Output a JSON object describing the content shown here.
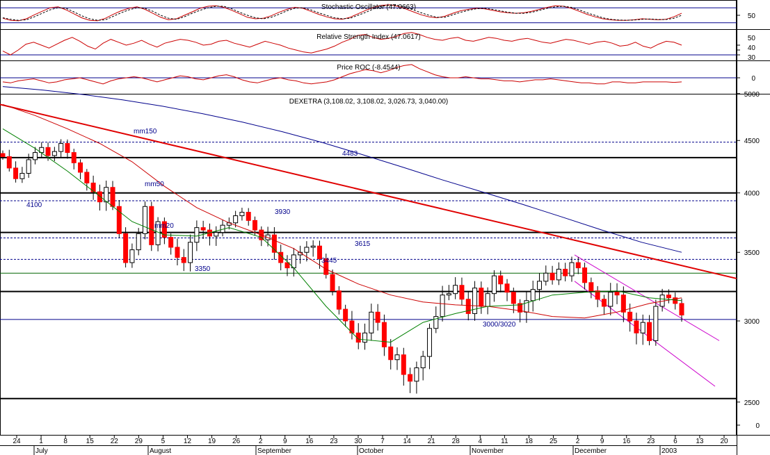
{
  "colors": {
    "background": "#ffffff",
    "frame": "#000000",
    "up_candle": "#ffffff",
    "down_candle": "#ff0000",
    "indicator_line": "#cc0000",
    "indicator_signal": "#000000",
    "indicator_ref": "#00008b",
    "mm150": "#00008b",
    "mm50": "#cc0000",
    "mm20": "#008000",
    "trendline": "#e00000",
    "channel": "#cc00cc",
    "level_dashed": "#00008b",
    "level_solid": "#000000",
    "level_thin": "#006400"
  },
  "chart_data": [
    {
      "type": "line",
      "panel": "stochastic",
      "title": "Stochastic Oscillator (47.0663)",
      "yticks": [
        "50"
      ],
      "ylim": [
        0,
        100
      ],
      "ref_levels": [
        80,
        20
      ],
      "series": [
        {
          "values": [
            38,
            30,
            28,
            36,
            52,
            66,
            80,
            84,
            72,
            56,
            40,
            30,
            28,
            38,
            54,
            68,
            78,
            84,
            74,
            58,
            42,
            32,
            36,
            50,
            64,
            78,
            86,
            88,
            82,
            70,
            56,
            42,
            36,
            38,
            48,
            62,
            74,
            82,
            78,
            66,
            54,
            44,
            36,
            34,
            42,
            56,
            70,
            82,
            90,
            92,
            86,
            76,
            64,
            52,
            44,
            40,
            46,
            58,
            68,
            74,
            78,
            76,
            70,
            64,
            60,
            58,
            60,
            66,
            74,
            82,
            88,
            86,
            78,
            66,
            54,
            44,
            36,
            32,
            30,
            30,
            32,
            36,
            34,
            32,
            34,
            44,
            58
          ]
        },
        {
          "values": [
            40,
            34,
            30,
            32,
            44,
            58,
            72,
            80,
            78,
            64,
            48,
            36,
            30,
            32,
            46,
            60,
            72,
            80,
            78,
            66,
            50,
            38,
            34,
            44,
            58,
            70,
            80,
            86,
            86,
            76,
            62,
            50,
            40,
            36,
            42,
            54,
            68,
            78,
            80,
            72,
            60,
            50,
            40,
            36,
            38,
            50,
            62,
            76,
            86,
            90,
            90,
            82,
            72,
            60,
            50,
            42,
            42,
            52,
            62,
            70,
            76,
            78,
            74,
            68,
            62,
            58,
            58,
            62,
            70,
            78,
            84,
            86,
            82,
            72,
            60,
            50,
            40,
            34,
            31,
            30,
            31,
            34,
            35,
            33,
            33,
            38,
            50
          ]
        }
      ]
    },
    {
      "type": "line",
      "panel": "rsi",
      "title": "Relative Strength Index (47.0617)",
      "yticks": [
        "50",
        "40",
        "30"
      ],
      "ylim": [
        20,
        80
      ],
      "ref_levels": [
        30
      ],
      "series": [
        {
          "values": [
            38,
            30,
            40,
            52,
            56,
            50,
            44,
            52,
            60,
            66,
            58,
            48,
            42,
            54,
            62,
            56,
            50,
            54,
            60,
            52,
            46,
            54,
            58,
            62,
            60,
            56,
            50,
            52,
            58,
            60,
            54,
            50,
            46,
            52,
            58,
            54,
            50,
            44,
            40,
            36,
            34,
            38,
            42,
            48,
            56,
            62,
            70,
            72,
            66,
            62,
            64,
            68,
            74,
            76,
            72,
            66,
            62,
            60,
            64,
            66,
            60,
            58,
            62,
            66,
            64,
            60,
            58,
            62,
            64,
            60,
            56,
            54,
            58,
            62,
            60,
            56,
            52,
            56,
            58,
            54,
            48,
            50,
            56,
            48,
            44,
            52,
            58,
            56,
            50
          ]
        }
      ]
    },
    {
      "type": "line",
      "panel": "roc",
      "title": "Price ROC (-8.4544)",
      "yticks": [
        "0"
      ],
      "ylim": [
        -30,
        30
      ],
      "ref_levels": [
        0
      ],
      "series": [
        {
          "values": [
            -8,
            -10,
            -6,
            -4,
            -2,
            -6,
            -10,
            -8,
            -4,
            -2,
            0,
            -4,
            -8,
            -12,
            -6,
            -2,
            0,
            2,
            0,
            -4,
            -8,
            -4,
            0,
            4,
            2,
            -2,
            -4,
            0,
            4,
            6,
            2,
            -4,
            -8,
            -10,
            -6,
            -2,
            0,
            -4,
            -6,
            -10,
            -12,
            -10,
            -8,
            -4,
            2,
            8,
            12,
            16,
            14,
            10,
            14,
            20,
            24,
            26,
            18,
            12,
            6,
            2,
            0,
            0,
            2,
            0,
            -2,
            -2,
            -4,
            -6,
            -6,
            -8,
            -6,
            -4,
            -4,
            -2,
            -4,
            -6,
            -8,
            -10,
            -10,
            -12,
            -12,
            -8,
            -8,
            -10,
            -10,
            -8,
            -8,
            -8,
            -8,
            -9,
            -8
          ]
        }
      ]
    },
    {
      "type": "candlestick",
      "panel": "price",
      "title": "DEXETRA (3,108.02, 3,108.02, 3,026.73, 3,040.00)",
      "yticks": [
        "5000",
        "4500",
        "4000",
        "3500",
        "3000",
        "2500",
        "0"
      ],
      "xticks": [
        "24",
        "1",
        "8",
        "15",
        "22",
        "29",
        "5",
        "12",
        "19",
        "26",
        "2",
        "9",
        "16",
        "23",
        "30",
        "7",
        "14",
        "21",
        "28",
        "4",
        "11",
        "18",
        "25",
        "2",
        "9",
        "16",
        "23",
        "6",
        "13",
        "20"
      ],
      "months": [
        "July",
        "August",
        "September",
        "October",
        "November",
        "December",
        "2003"
      ],
      "closes": [
        4340,
        4230,
        4130,
        4180,
        4310,
        4380,
        4430,
        4350,
        4390,
        4470,
        4380,
        4280,
        4190,
        4090,
        4010,
        3920,
        4050,
        3880,
        3650,
        3420,
        3520,
        3650,
        3880,
        3560,
        3750,
        3620,
        3540,
        3460,
        3420,
        3580,
        3700,
        3680,
        3630,
        3660,
        3720,
        3740,
        3800,
        3830,
        3760,
        3680,
        3600,
        3640,
        3500,
        3420,
        3380,
        3480,
        3500,
        3540,
        3550,
        3450,
        3330,
        3210,
        3080,
        3000,
        2920,
        2860,
        2920,
        3060,
        2990,
        2830,
        2750,
        2780,
        2660,
        2620,
        2700,
        2770,
        2950,
        3030,
        3180,
        3190,
        3250,
        3150,
        3050,
        3230,
        3100,
        3190,
        3320,
        3260,
        3200,
        3120,
        3060,
        3140,
        3220,
        3280,
        3340,
        3290,
        3370,
        3320,
        3420,
        3380,
        3270,
        3210,
        3150,
        3100,
        3200,
        3180,
        3060,
        3000,
        2920,
        2990,
        2870,
        3100,
        3180,
        3160,
        3120,
        3040
      ],
      "moving_averages": [
        {
          "name": "mm150",
          "values": [
            5080,
            5040,
            4990,
            4930,
            4860,
            4780,
            4690,
            4590,
            4480,
            4360,
            4240,
            4120,
            4010,
            3900,
            3790,
            3680,
            3580,
            3500
          ]
        },
        {
          "name": "mm50",
          "values": [
            4880,
            4760,
            4620,
            4470,
            4290,
            4060,
            3870,
            3740,
            3640,
            3530,
            3370,
            3260,
            3180,
            3130,
            3110,
            3100,
            3070,
            3030,
            3020,
            3060,
            3120,
            3160
          ]
        },
        {
          "name": "mm20",
          "values": [
            4620,
            4420,
            4200,
            3970,
            3750,
            3640,
            3630,
            3700,
            3620,
            3380,
            3100,
            2880,
            2860,
            2990,
            3050,
            3100,
            3110,
            3180,
            3200,
            3210,
            3160,
            3140
          ]
        }
      ],
      "annotations": [
        "mm150",
        "mm50",
        "mm20",
        "4483",
        "4100",
        "3930",
        "3615",
        "3445",
        "3350",
        "3000/3020"
      ],
      "levels": [
        {
          "value": 4483,
          "style": "dashed"
        },
        {
          "value": 4330,
          "style": "solid"
        },
        {
          "value": 4000,
          "style": "solid"
        },
        {
          "value": 3930,
          "style": "dashed"
        },
        {
          "value": 3660,
          "style": "solid"
        },
        {
          "value": 3615,
          "style": "dashed"
        },
        {
          "value": 3445,
          "style": "dashed"
        },
        {
          "value": 3340,
          "style": "thin"
        },
        {
          "value": 3205,
          "style": "solid"
        },
        {
          "value": 3010,
          "style": "thin"
        },
        {
          "value": 2520,
          "style": "solid"
        }
      ]
    }
  ]
}
